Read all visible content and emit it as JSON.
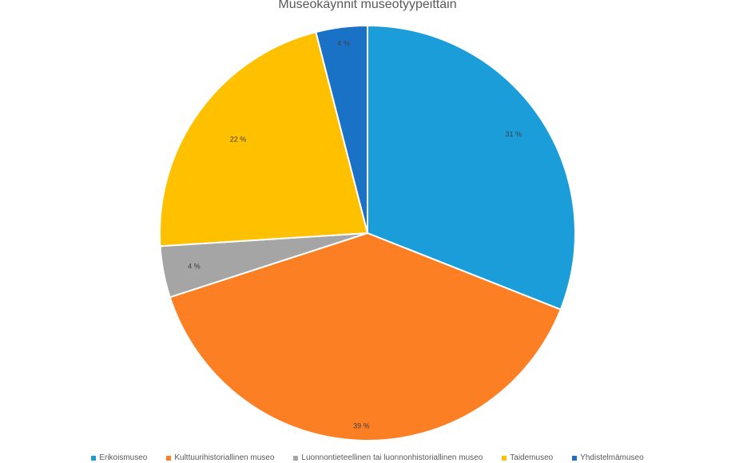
{
  "chart_data": {
    "type": "pie",
    "title": "Museokäynnit museotyypeittäin",
    "categories": [
      "Erikoismuseo",
      "Kulttuurihistoriallinen museo",
      "Luonnontieteellinen tai luonnonhistoriallinen museo",
      "Taidemuseo",
      "Yhdistelmämuseo"
    ],
    "values": [
      31,
      39,
      4,
      22,
      4
    ],
    "labels": [
      "31 %",
      "39 %",
      "4 %",
      "22 %",
      "4 %"
    ],
    "colors": [
      "#1b9dd9",
      "#fd7f23",
      "#a5a5a5",
      "#ffc000",
      "#1a72c6"
    ],
    "legend_position": "bottom"
  }
}
